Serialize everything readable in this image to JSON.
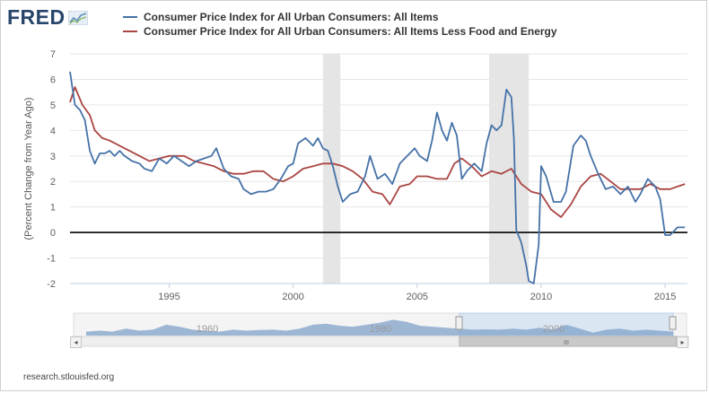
{
  "brand": {
    "logo_text": "FRED",
    "source": "research.stlouisfed.org"
  },
  "colors": {
    "series1": "#4572a7",
    "series2": "#aa4643",
    "recession": "#e5e5e5",
    "navigator": "#4572a7"
  },
  "chart_data": {
    "type": "line",
    "ylabel": "(Percent Change from Year Ago)",
    "xlim": [
      1991.0,
      2015.9
    ],
    "ylim": [
      -2,
      7
    ],
    "yticks": [
      -2,
      -1,
      0,
      1,
      2,
      3,
      4,
      5,
      6,
      7
    ],
    "xticks": [
      1995,
      2000,
      2005,
      2010,
      2015
    ],
    "grid": "horizontal",
    "legend": "top",
    "zero_line": true,
    "recessions": [
      [
        2001.2,
        2001.9
      ],
      [
        2007.9,
        2009.5
      ]
    ],
    "series": [
      {
        "name": "Consumer Price Index for All Urban Consumers: All Items",
        "color": "#4572a7",
        "x": [
          1991.0,
          1991.2,
          1991.4,
          1991.6,
          1991.8,
          1992.0,
          1992.2,
          1992.4,
          1992.6,
          1992.8,
          1993.0,
          1993.2,
          1993.5,
          1993.8,
          1994.0,
          1994.3,
          1994.6,
          1994.9,
          1995.2,
          1995.5,
          1995.8,
          1996.1,
          1996.4,
          1996.7,
          1996.9,
          1997.2,
          1997.5,
          1997.8,
          1998.0,
          1998.3,
          1998.6,
          1998.9,
          1999.2,
          1999.5,
          1999.8,
          2000.0,
          2000.2,
          2000.5,
          2000.8,
          2001.0,
          2001.2,
          2001.4,
          2001.6,
          2001.8,
          2002.0,
          2002.3,
          2002.6,
          2002.9,
          2003.1,
          2003.4,
          2003.7,
          2004.0,
          2004.3,
          2004.6,
          2004.9,
          2005.1,
          2005.4,
          2005.6,
          2005.8,
          2006.0,
          2006.2,
          2006.4,
          2006.6,
          2006.8,
          2007.0,
          2007.3,
          2007.6,
          2007.8,
          2008.0,
          2008.2,
          2008.4,
          2008.6,
          2008.8,
          2008.9,
          2009.0,
          2009.2,
          2009.4,
          2009.5,
          2009.7,
          2009.9,
          2010.0,
          2010.2,
          2010.5,
          2010.8,
          2011.0,
          2011.3,
          2011.6,
          2011.8,
          2012.0,
          2012.3,
          2012.6,
          2012.9,
          2013.2,
          2013.5,
          2013.8,
          2014.0,
          2014.3,
          2014.6,
          2014.8,
          2015.0,
          2015.2,
          2015.5,
          2015.8
        ],
        "values": [
          6.3,
          5.0,
          4.8,
          4.4,
          3.2,
          2.7,
          3.1,
          3.1,
          3.2,
          3.0,
          3.2,
          3.0,
          2.8,
          2.7,
          2.5,
          2.4,
          2.9,
          2.7,
          3.0,
          2.8,
          2.6,
          2.8,
          2.9,
          3.0,
          3.3,
          2.5,
          2.2,
          2.1,
          1.7,
          1.5,
          1.6,
          1.6,
          1.7,
          2.1,
          2.6,
          2.7,
          3.5,
          3.7,
          3.4,
          3.7,
          3.3,
          3.2,
          2.6,
          1.8,
          1.2,
          1.5,
          1.6,
          2.2,
          3.0,
          2.1,
          2.3,
          1.9,
          2.7,
          3.0,
          3.3,
          3.0,
          2.8,
          3.6,
          4.7,
          4.0,
          3.6,
          4.3,
          3.8,
          2.1,
          2.4,
          2.7,
          2.4,
          3.5,
          4.2,
          4.0,
          4.2,
          5.6,
          5.3,
          3.7,
          0.1,
          -0.4,
          -1.3,
          -1.9,
          -2.0,
          -0.5,
          2.6,
          2.2,
          1.2,
          1.2,
          1.6,
          3.4,
          3.8,
          3.6,
          3.0,
          2.3,
          1.7,
          1.8,
          1.5,
          1.8,
          1.2,
          1.5,
          2.1,
          1.8,
          1.3,
          -0.1,
          -0.1,
          0.2,
          0.2
        ]
      },
      {
        "name": "Consumer Price Index for All Urban Consumers: All Items Less Food and Energy",
        "color": "#aa4643",
        "x": [
          1991.0,
          1991.2,
          1991.5,
          1991.8,
          1992.0,
          1992.3,
          1992.6,
          1993.0,
          1993.4,
          1993.8,
          1994.2,
          1994.6,
          1995.0,
          1995.3,
          1995.6,
          1996.0,
          1996.4,
          1996.8,
          1997.2,
          1997.6,
          1998.0,
          1998.4,
          1998.8,
          1999.2,
          1999.6,
          2000.0,
          2000.4,
          2000.8,
          2001.2,
          2001.6,
          2002.0,
          2002.4,
          2002.8,
          2003.2,
          2003.6,
          2003.9,
          2004.3,
          2004.7,
          2005.0,
          2005.4,
          2005.8,
          2006.2,
          2006.5,
          2006.8,
          2007.2,
          2007.6,
          2008.0,
          2008.4,
          2008.8,
          2009.2,
          2009.6,
          2010.0,
          2010.4,
          2010.8,
          2011.2,
          2011.6,
          2012.0,
          2012.4,
          2012.8,
          2013.2,
          2013.6,
          2014.0,
          2014.4,
          2014.8,
          2015.2,
          2015.5,
          2015.8
        ],
        "values": [
          5.1,
          5.7,
          5.0,
          4.6,
          4.0,
          3.7,
          3.6,
          3.4,
          3.2,
          3.0,
          2.8,
          2.9,
          3.0,
          3.0,
          3.0,
          2.8,
          2.7,
          2.6,
          2.4,
          2.3,
          2.3,
          2.4,
          2.4,
          2.1,
          2.0,
          2.2,
          2.5,
          2.6,
          2.7,
          2.7,
          2.6,
          2.4,
          2.1,
          1.6,
          1.5,
          1.1,
          1.8,
          1.9,
          2.2,
          2.2,
          2.1,
          2.1,
          2.7,
          2.9,
          2.6,
          2.2,
          2.4,
          2.3,
          2.5,
          1.9,
          1.6,
          1.5,
          0.9,
          0.6,
          1.1,
          1.8,
          2.2,
          2.3,
          2.0,
          1.7,
          1.7,
          1.7,
          1.9,
          1.7,
          1.7,
          1.8,
          1.9
        ]
      }
    ]
  },
  "navigator": {
    "labels": [
      "1960",
      "1980",
      "2000"
    ],
    "scroll_label": "III",
    "left_arrow": "◂",
    "right_arrow": "▸"
  }
}
